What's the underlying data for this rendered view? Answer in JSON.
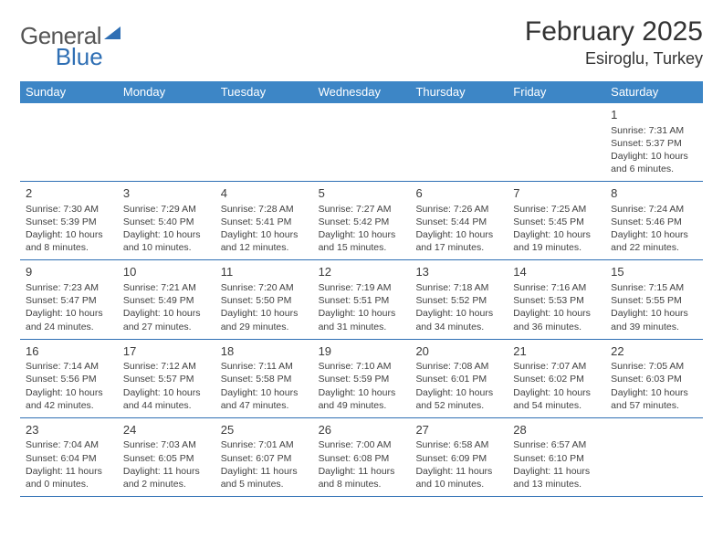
{
  "brand": {
    "word1": "General",
    "word2": "Blue"
  },
  "title": "February 2025",
  "location": "Esiroglu, Turkey",
  "colors": {
    "header_bg": "#3d86c6",
    "header_fg": "#ffffff",
    "rule": "#2f6fb4",
    "text": "#414141",
    "title": "#333333"
  },
  "weekdays": [
    "Sunday",
    "Monday",
    "Tuesday",
    "Wednesday",
    "Thursday",
    "Friday",
    "Saturday"
  ],
  "weeks": [
    [
      null,
      null,
      null,
      null,
      null,
      null,
      {
        "n": "1",
        "sunrise": "7:31 AM",
        "sunset": "5:37 PM",
        "dayh": "10",
        "daym": "6"
      }
    ],
    [
      {
        "n": "2",
        "sunrise": "7:30 AM",
        "sunset": "5:39 PM",
        "dayh": "10",
        "daym": "8"
      },
      {
        "n": "3",
        "sunrise": "7:29 AM",
        "sunset": "5:40 PM",
        "dayh": "10",
        "daym": "10"
      },
      {
        "n": "4",
        "sunrise": "7:28 AM",
        "sunset": "5:41 PM",
        "dayh": "10",
        "daym": "12"
      },
      {
        "n": "5",
        "sunrise": "7:27 AM",
        "sunset": "5:42 PM",
        "dayh": "10",
        "daym": "15"
      },
      {
        "n": "6",
        "sunrise": "7:26 AM",
        "sunset": "5:44 PM",
        "dayh": "10",
        "daym": "17"
      },
      {
        "n": "7",
        "sunrise": "7:25 AM",
        "sunset": "5:45 PM",
        "dayh": "10",
        "daym": "19"
      },
      {
        "n": "8",
        "sunrise": "7:24 AM",
        "sunset": "5:46 PM",
        "dayh": "10",
        "daym": "22"
      }
    ],
    [
      {
        "n": "9",
        "sunrise": "7:23 AM",
        "sunset": "5:47 PM",
        "dayh": "10",
        "daym": "24"
      },
      {
        "n": "10",
        "sunrise": "7:21 AM",
        "sunset": "5:49 PM",
        "dayh": "10",
        "daym": "27"
      },
      {
        "n": "11",
        "sunrise": "7:20 AM",
        "sunset": "5:50 PM",
        "dayh": "10",
        "daym": "29"
      },
      {
        "n": "12",
        "sunrise": "7:19 AM",
        "sunset": "5:51 PM",
        "dayh": "10",
        "daym": "31"
      },
      {
        "n": "13",
        "sunrise": "7:18 AM",
        "sunset": "5:52 PM",
        "dayh": "10",
        "daym": "34"
      },
      {
        "n": "14",
        "sunrise": "7:16 AM",
        "sunset": "5:53 PM",
        "dayh": "10",
        "daym": "36"
      },
      {
        "n": "15",
        "sunrise": "7:15 AM",
        "sunset": "5:55 PM",
        "dayh": "10",
        "daym": "39"
      }
    ],
    [
      {
        "n": "16",
        "sunrise": "7:14 AM",
        "sunset": "5:56 PM",
        "dayh": "10",
        "daym": "42"
      },
      {
        "n": "17",
        "sunrise": "7:12 AM",
        "sunset": "5:57 PM",
        "dayh": "10",
        "daym": "44"
      },
      {
        "n": "18",
        "sunrise": "7:11 AM",
        "sunset": "5:58 PM",
        "dayh": "10",
        "daym": "47"
      },
      {
        "n": "19",
        "sunrise": "7:10 AM",
        "sunset": "5:59 PM",
        "dayh": "10",
        "daym": "49"
      },
      {
        "n": "20",
        "sunrise": "7:08 AM",
        "sunset": "6:01 PM",
        "dayh": "10",
        "daym": "52"
      },
      {
        "n": "21",
        "sunrise": "7:07 AM",
        "sunset": "6:02 PM",
        "dayh": "10",
        "daym": "54"
      },
      {
        "n": "22",
        "sunrise": "7:05 AM",
        "sunset": "6:03 PM",
        "dayh": "10",
        "daym": "57"
      }
    ],
    [
      {
        "n": "23",
        "sunrise": "7:04 AM",
        "sunset": "6:04 PM",
        "dayh": "11",
        "daym": "0"
      },
      {
        "n": "24",
        "sunrise": "7:03 AM",
        "sunset": "6:05 PM",
        "dayh": "11",
        "daym": "2"
      },
      {
        "n": "25",
        "sunrise": "7:01 AM",
        "sunset": "6:07 PM",
        "dayh": "11",
        "daym": "5"
      },
      {
        "n": "26",
        "sunrise": "7:00 AM",
        "sunset": "6:08 PM",
        "dayh": "11",
        "daym": "8"
      },
      {
        "n": "27",
        "sunrise": "6:58 AM",
        "sunset": "6:09 PM",
        "dayh": "11",
        "daym": "10"
      },
      {
        "n": "28",
        "sunrise": "6:57 AM",
        "sunset": "6:10 PM",
        "dayh": "11",
        "daym": "13"
      },
      null
    ]
  ],
  "labels": {
    "sunrise": "Sunrise:",
    "sunset": "Sunset:",
    "daylight_prefix": "Daylight:",
    "hours_word": "hours",
    "and_word": "and",
    "minutes_word": "minutes."
  }
}
